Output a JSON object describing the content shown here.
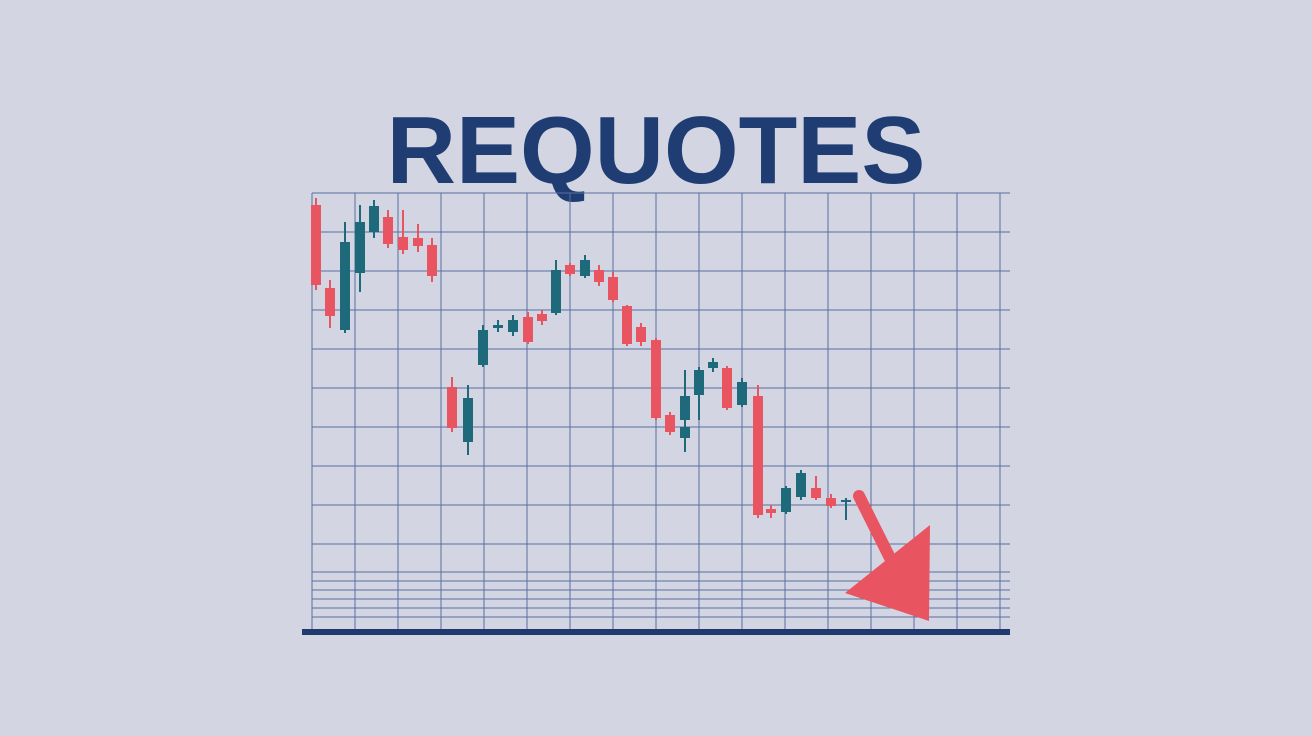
{
  "title": "REQUOTES"
}
